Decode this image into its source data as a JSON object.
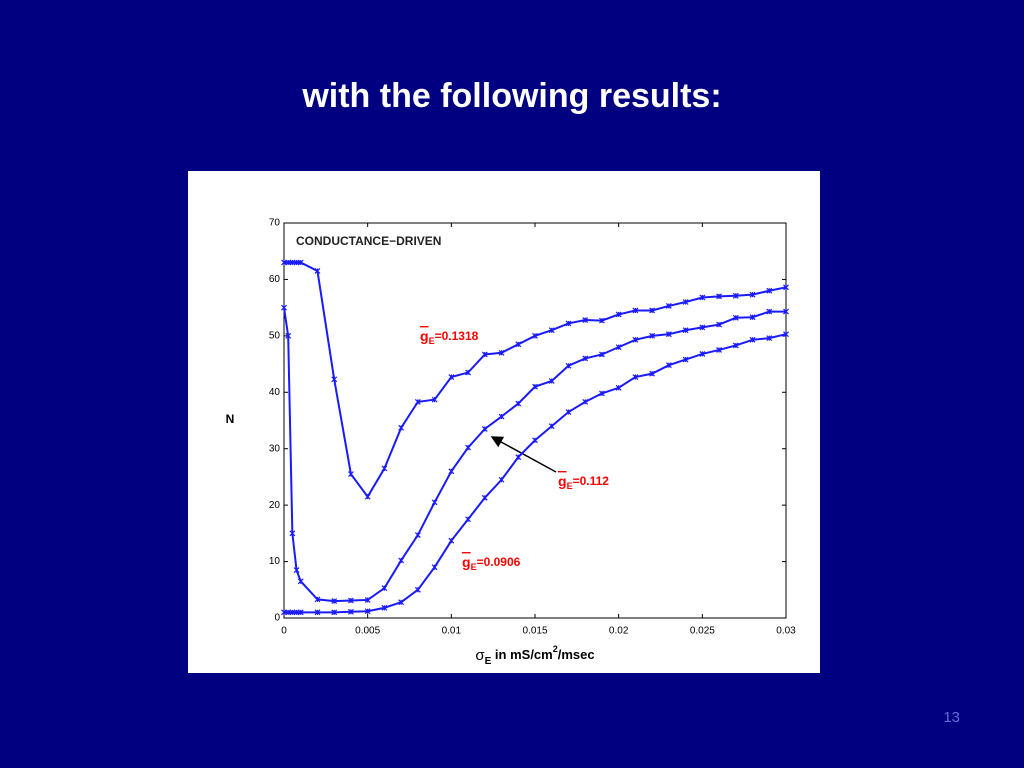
{
  "title": "with the following results:",
  "page_number": "13",
  "chart_data": {
    "type": "line",
    "title": "CONDUCTANCE−DRIVEN",
    "x_label": {
      "symbol": "σ",
      "subscript": "E",
      "text": " in mS/cm",
      "superscript": "2",
      "suffix": "/msec"
    },
    "y_label": "N",
    "x": [
      0,
      0.00025,
      0.0005,
      0.00075,
      0.001,
      0.002,
      0.003,
      0.004,
      0.005,
      0.006,
      0.007,
      0.008,
      0.009,
      0.01,
      0.011,
      0.012,
      0.013,
      0.014,
      0.015,
      0.016,
      0.017,
      0.018,
      0.019,
      0.02,
      0.021,
      0.022,
      0.023,
      0.024,
      0.025,
      0.026,
      0.027,
      0.028,
      0.029,
      0.03
    ],
    "series": [
      {
        "color": "#1a1aff",
        "values": [
          63,
          63,
          63,
          63,
          63,
          61.5,
          42.3,
          25.5,
          21.5,
          26.5,
          33.7,
          38.3,
          38.7,
          42.7,
          43.5,
          46.7,
          47,
          48.5,
          50,
          51,
          52.2,
          52.8,
          52.7,
          53.8,
          54.5,
          54.5,
          55.3,
          56,
          56.8,
          57,
          57.1,
          57.3,
          58,
          58.6
        ]
      },
      {
        "color": "#1a1aff",
        "values": [
          55,
          50,
          15,
          8.5,
          6.5,
          3.3,
          3,
          3.1,
          3.2,
          5.3,
          10.2,
          14.7,
          20.5,
          26,
          30.2,
          33.5,
          35.7,
          38,
          41,
          42,
          44.7,
          46,
          46.7,
          48,
          49.3,
          50,
          50.3,
          51,
          51.5,
          52,
          53.2,
          53.3,
          54.3,
          54.3
        ]
      },
      {
        "color": "#1a1aff",
        "values": [
          1,
          1,
          1,
          1,
          1,
          1,
          1,
          1.1,
          1.2,
          1.8,
          2.8,
          5,
          9,
          13.7,
          17.5,
          21.3,
          24.5,
          28.5,
          31.5,
          34,
          36.5,
          38.3,
          39.8,
          40.8,
          42.7,
          43.3,
          44.8,
          45.8,
          46.8,
          47.5,
          48.3,
          49.3,
          49.6,
          50.3
        ]
      }
    ],
    "annotations": [
      {
        "symbol": "g",
        "subscript": "E",
        "text": "=0.1318"
      },
      {
        "symbol": "g",
        "subscript": "E",
        "text": "=0.112"
      },
      {
        "symbol": "g",
        "subscript": "E",
        "text": "=0.0906"
      }
    ],
    "annotation_color": "#ff0000",
    "xlim": [
      0,
      0.03
    ],
    "ylim": [
      0,
      70
    ],
    "xticks": [
      0,
      0.005,
      0.01,
      0.015,
      0.02,
      0.025,
      0.03
    ],
    "yticks": [
      0,
      10,
      20,
      30,
      40,
      50,
      60,
      70
    ]
  }
}
